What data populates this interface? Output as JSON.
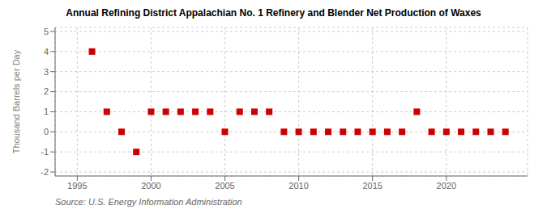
{
  "chart_data": {
    "type": "scatter",
    "title": "Annual Refining District Appalachian No. 1 Refinery and Blender Net Production of Waxes",
    "y_label": "Thousand Barrels per Day",
    "annotation": "Source: U.S. Energy Information Administration",
    "x": [
      1996,
      1997,
      1998,
      1999,
      2000,
      2001,
      2002,
      2003,
      2004,
      2005,
      2006,
      2007,
      2008,
      2009,
      2010,
      2011,
      2012,
      2013,
      2014,
      2015,
      2016,
      2017,
      2018,
      2019,
      2020,
      2021,
      2022,
      2023,
      2024
    ],
    "values": [
      4.0,
      1.0,
      0.0,
      -1.0,
      1.0,
      1.0,
      1.0,
      1.0,
      1.0,
      0.0,
      1.0,
      1.0,
      1.0,
      0.0,
      0.0,
      0.0,
      0.0,
      0.0,
      0.0,
      0.0,
      0.0,
      0.0,
      1.0,
      0.0,
      0.0,
      0.0,
      0.0,
      0.0,
      0.0
    ],
    "color": "#cc0000",
    "marker": "square",
    "xlim": [
      1993.5,
      2025.5
    ],
    "ylim": [
      -2.2,
      5.2
    ],
    "xticks": [
      1995,
      2000,
      2005,
      2010,
      2015,
      2020
    ],
    "yticks": [
      -2,
      -1,
      0,
      1,
      2,
      3,
      4,
      5
    ],
    "grid": true
  }
}
